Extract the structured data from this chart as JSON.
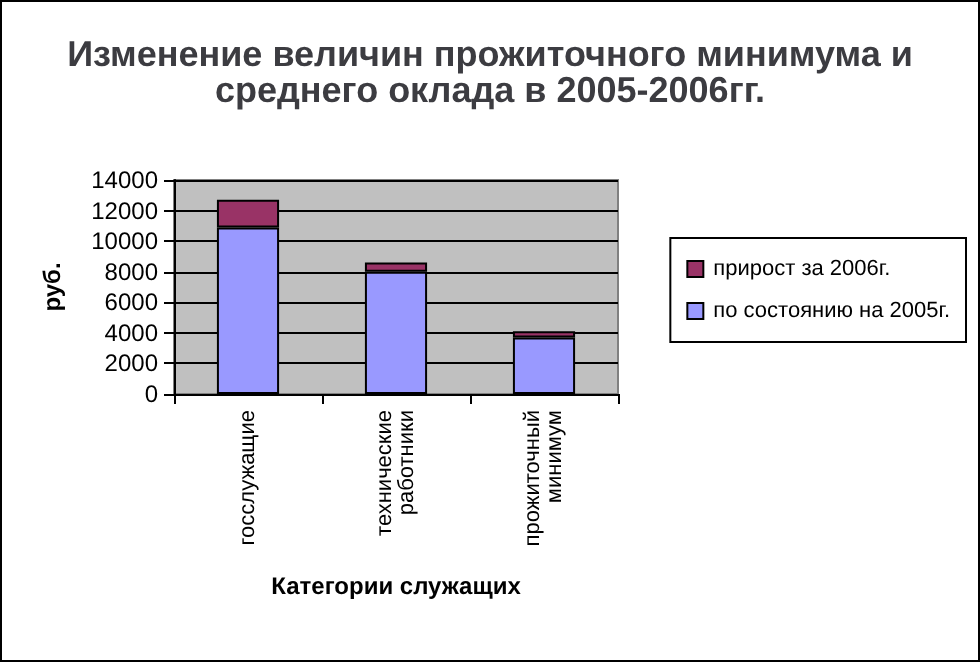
{
  "chart_data": {
    "type": "bar",
    "title": "Изменение величин прожиточного минимума и\nсреднего оклада в 2005-2006гг.",
    "xlabel": "Категории служащих",
    "ylabel": "руб.",
    "categories": [
      "госслужащие",
      "технические работники",
      "прожиточный минимум"
    ],
    "series": [
      {
        "name": "по состоянию на 2005г.",
        "color": "#9999ff",
        "values": [
          10900,
          8000,
          3700
        ]
      },
      {
        "name": "прирост за 2006г.",
        "color": "#993366",
        "values": [
          1800,
          600,
          400
        ]
      }
    ],
    "stacked": true,
    "ylim": [
      0,
      14000
    ],
    "yticks": [
      0,
      2000,
      4000,
      6000,
      8000,
      10000,
      12000,
      14000
    ],
    "grid": "y",
    "legend": "right"
  }
}
